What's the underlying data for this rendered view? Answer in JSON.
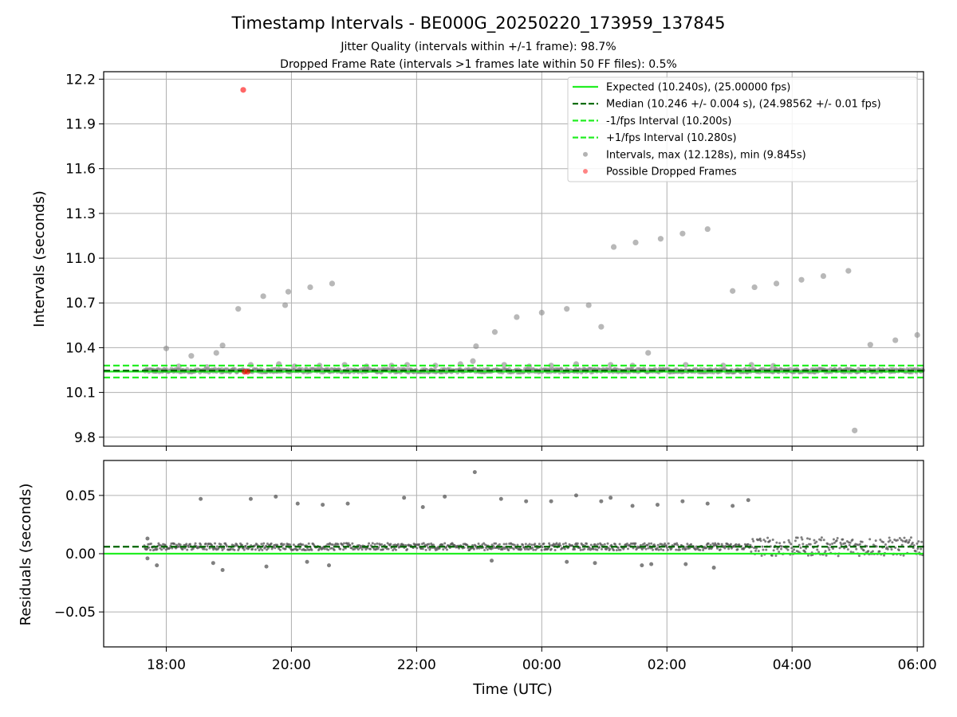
{
  "figure": {
    "title": "Timestamp Intervals - BE000G_20250220_173959_137845",
    "subtitle_line1": "Jitter Quality (intervals within +/-1 frame): 98.7%",
    "subtitle_line2": "Dropped Frame Rate (intervals >1 frames late within 50 FF files): 0.5%"
  },
  "colors": {
    "expected": "#22ee22",
    "median": "#006400",
    "interval_bounds": "#22ee22",
    "intervals": "#808080",
    "dropped": "#ff0000",
    "grid": "#b0b0b0"
  },
  "chart_data": [
    {
      "type": "scatter",
      "name": "intervals",
      "ylabel": "Intervals (seconds)",
      "xlim_hours": [
        17.0,
        30.1
      ],
      "ylim": [
        9.74,
        12.25
      ],
      "y_ticks": [
        "9.8",
        "10.1",
        "10.4",
        "10.7",
        "11.0",
        "11.3",
        "11.6",
        "11.9",
        "12.2"
      ],
      "grid": true,
      "legend_position": "top-right",
      "legend": [
        {
          "label": "Expected (10.240s), (25.00000 fps)",
          "style": "solid",
          "color": "#22ee22"
        },
        {
          "label": "Median (10.246 +/- 0.004 s), (24.98562 +/- 0.01 fps)",
          "style": "dashed",
          "color": "#006400"
        },
        {
          "label": "-1/fps Interval (10.200s)",
          "style": "dashed",
          "color": "#22ee22"
        },
        {
          "label": "+1/fps Interval (10.280s)",
          "style": "dashed",
          "color": "#22ee22"
        },
        {
          "label": "Intervals, max (12.128s), min (9.845s)",
          "style": "dot",
          "color": "#a0a0a0"
        },
        {
          "label": "Possible Dropped Frames",
          "style": "dot",
          "color": "#ff6666"
        }
      ],
      "reference_lines": {
        "expected": 10.24,
        "median": 10.246,
        "lower": 10.2,
        "upper": 10.28
      },
      "baseline": {
        "start_hour": 17.65,
        "end_hour": 30.1,
        "value": 10.246,
        "spread": 0.012
      },
      "outliers": [
        {
          "x": 18.0,
          "y": 10.395
        },
        {
          "x": 18.4,
          "y": 10.345
        },
        {
          "x": 18.8,
          "y": 10.365
        },
        {
          "x": 18.9,
          "y": 10.415
        },
        {
          "x": 19.15,
          "y": 10.66
        },
        {
          "x": 19.55,
          "y": 10.745
        },
        {
          "x": 19.9,
          "y": 10.685
        },
        {
          "x": 19.95,
          "y": 10.775
        },
        {
          "x": 20.3,
          "y": 10.805
        },
        {
          "x": 20.65,
          "y": 10.83
        },
        {
          "x": 22.95,
          "y": 10.41
        },
        {
          "x": 23.25,
          "y": 10.505
        },
        {
          "x": 23.6,
          "y": 10.605
        },
        {
          "x": 24.0,
          "y": 10.635
        },
        {
          "x": 24.4,
          "y": 10.66
        },
        {
          "x": 24.75,
          "y": 10.685
        },
        {
          "x": 24.95,
          "y": 10.54
        },
        {
          "x": 25.15,
          "y": 11.075
        },
        {
          "x": 25.5,
          "y": 11.105
        },
        {
          "x": 25.7,
          "y": 10.365
        },
        {
          "x": 25.9,
          "y": 11.13
        },
        {
          "x": 26.25,
          "y": 11.165
        },
        {
          "x": 26.65,
          "y": 11.195
        },
        {
          "x": 27.05,
          "y": 10.78
        },
        {
          "x": 27.4,
          "y": 10.805
        },
        {
          "x": 27.75,
          "y": 10.83
        },
        {
          "x": 28.15,
          "y": 10.855
        },
        {
          "x": 28.5,
          "y": 10.88
        },
        {
          "x": 28.9,
          "y": 10.915
        },
        {
          "x": 29.0,
          "y": 9.845
        },
        {
          "x": 29.25,
          "y": 10.42
        },
        {
          "x": 29.65,
          "y": 10.45
        },
        {
          "x": 30.0,
          "y": 10.485
        },
        {
          "x": 18.2,
          "y": 10.275
        },
        {
          "x": 18.65,
          "y": 10.27
        },
        {
          "x": 19.35,
          "y": 10.285
        },
        {
          "x": 19.8,
          "y": 10.29
        },
        {
          "x": 20.05,
          "y": 10.275
        },
        {
          "x": 20.45,
          "y": 10.28
        },
        {
          "x": 20.85,
          "y": 10.285
        },
        {
          "x": 21.2,
          "y": 10.275
        },
        {
          "x": 21.6,
          "y": 10.28
        },
        {
          "x": 21.85,
          "y": 10.285
        },
        {
          "x": 22.3,
          "y": 10.28
        },
        {
          "x": 22.7,
          "y": 10.29
        },
        {
          "x": 22.9,
          "y": 10.31
        },
        {
          "x": 23.4,
          "y": 10.285
        },
        {
          "x": 23.8,
          "y": 10.275
        },
        {
          "x": 24.15,
          "y": 10.28
        },
        {
          "x": 24.55,
          "y": 10.29
        },
        {
          "x": 25.1,
          "y": 10.285
        },
        {
          "x": 25.45,
          "y": 10.28
        },
        {
          "x": 26.3,
          "y": 10.285
        },
        {
          "x": 26.9,
          "y": 10.28
        },
        {
          "x": 27.35,
          "y": 10.285
        },
        {
          "x": 27.7,
          "y": 10.278
        }
      ],
      "dropped_points": [
        {
          "x": 19.23,
          "y": 12.128
        },
        {
          "x": 19.25,
          "y": 10.238
        },
        {
          "x": 19.3,
          "y": 10.238
        }
      ]
    },
    {
      "type": "scatter",
      "name": "residuals",
      "ylabel": "Residuals (seconds)",
      "xlabel": "Time (UTC)",
      "xlim_hours": [
        17.0,
        30.1
      ],
      "ylim": [
        -0.08,
        0.08
      ],
      "y_ticks": [
        {
          "value": -0.05,
          "label": "−0.05"
        },
        {
          "value": 0.0,
          "label": "0.00"
        },
        {
          "value": 0.05,
          "label": "0.05"
        }
      ],
      "x_ticks": [
        {
          "value": 18,
          "label": "18:00"
        },
        {
          "value": 20,
          "label": "20:00"
        },
        {
          "value": 22,
          "label": "22:00"
        },
        {
          "value": 24,
          "label": "00:00"
        },
        {
          "value": 26,
          "label": "02:00"
        },
        {
          "value": 28,
          "label": "04:00"
        },
        {
          "value": 30,
          "label": "06:00"
        }
      ],
      "grid": true,
      "reference_lines": {
        "zero": 0.0,
        "median": 0.006
      },
      "baseline": {
        "start_hour": 17.65,
        "end_hour": 30.1,
        "value": 0.006,
        "spread": 0.003,
        "noisy_from_hour": 27.3,
        "noisy_spread": 0.008
      },
      "outliers": [
        {
          "x": 18.55,
          "y": 0.047
        },
        {
          "x": 19.35,
          "y": 0.047
        },
        {
          "x": 19.75,
          "y": 0.049
        },
        {
          "x": 20.1,
          "y": 0.043
        },
        {
          "x": 20.5,
          "y": 0.042
        },
        {
          "x": 20.9,
          "y": 0.043
        },
        {
          "x": 21.8,
          "y": 0.048
        },
        {
          "x": 22.1,
          "y": 0.04
        },
        {
          "x": 22.45,
          "y": 0.049
        },
        {
          "x": 22.93,
          "y": 0.07
        },
        {
          "x": 23.35,
          "y": 0.047
        },
        {
          "x": 23.75,
          "y": 0.045
        },
        {
          "x": 24.15,
          "y": 0.045
        },
        {
          "x": 24.55,
          "y": 0.05
        },
        {
          "x": 24.95,
          "y": 0.045
        },
        {
          "x": 25.1,
          "y": 0.048
        },
        {
          "x": 25.45,
          "y": 0.041
        },
        {
          "x": 25.85,
          "y": 0.042
        },
        {
          "x": 26.25,
          "y": 0.045
        },
        {
          "x": 26.65,
          "y": 0.043
        },
        {
          "x": 27.05,
          "y": 0.041
        },
        {
          "x": 27.3,
          "y": 0.046
        },
        {
          "x": 17.7,
          "y": 0.013
        },
        {
          "x": 17.7,
          "y": -0.004
        },
        {
          "x": 17.85,
          "y": -0.01
        },
        {
          "x": 18.75,
          "y": -0.008
        },
        {
          "x": 18.9,
          "y": -0.014
        },
        {
          "x": 19.6,
          "y": -0.011
        },
        {
          "x": 20.6,
          "y": -0.01
        },
        {
          "x": 20.25,
          "y": -0.007
        },
        {
          "x": 25.6,
          "y": -0.01
        },
        {
          "x": 25.75,
          "y": -0.009
        },
        {
          "x": 26.3,
          "y": -0.009
        },
        {
          "x": 26.75,
          "y": -0.012
        },
        {
          "x": 23.2,
          "y": -0.006
        },
        {
          "x": 24.4,
          "y": -0.007
        },
        {
          "x": 24.85,
          "y": -0.008
        }
      ]
    }
  ]
}
